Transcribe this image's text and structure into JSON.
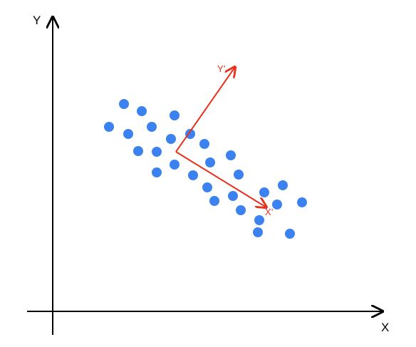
{
  "axes": {
    "x_label": "X",
    "y_label": "Y",
    "color": "#000000"
  },
  "principal_axes": {
    "x_prime_label": "X’",
    "y_prime_label": "Y’",
    "color": "#e8301d"
  },
  "points": {
    "color": "#3b82f0"
  }
}
